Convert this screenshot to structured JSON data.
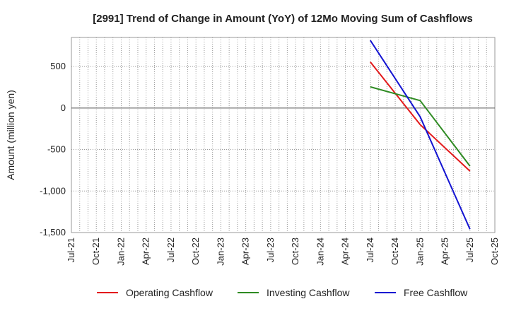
{
  "chart_data": {
    "type": "line",
    "title": "[2991]  Trend of Change in Amount (YoY) of 12Mo Moving Sum of Cashflows",
    "xlabel": "",
    "ylabel": "Amount (million yen)",
    "ylim": [
      -1500,
      850
    ],
    "yticks": [
      500,
      0,
      -500,
      -1000,
      -1500
    ],
    "ytick_labels": [
      "500",
      "0",
      "-500",
      "-1,000",
      "-1,500"
    ],
    "categories": [
      "Jul-21",
      "Oct-21",
      "Jan-22",
      "Apr-22",
      "Jul-22",
      "Oct-22",
      "Jan-23",
      "Apr-23",
      "Jul-23",
      "Oct-23",
      "Jan-24",
      "Apr-24",
      "Jul-24",
      "Oct-24",
      "Jan-25",
      "Apr-25",
      "Jul-25",
      "Oct-25"
    ],
    "grid": true,
    "legend_position": "bottom",
    "series": [
      {
        "name": "Operating Cashflow",
        "color": "#e31a1c",
        "points": [
          [
            12,
            555
          ],
          [
            14,
            -200
          ],
          [
            16,
            -760
          ]
        ]
      },
      {
        "name": "Investing Cashflow",
        "color": "#2e8b22",
        "points": [
          [
            12,
            255
          ],
          [
            14,
            90
          ],
          [
            16,
            -700
          ]
        ]
      },
      {
        "name": "Free Cashflow",
        "color": "#1414d2",
        "points": [
          [
            12,
            815
          ],
          [
            14,
            -105
          ],
          [
            16,
            -1460
          ]
        ]
      }
    ]
  }
}
